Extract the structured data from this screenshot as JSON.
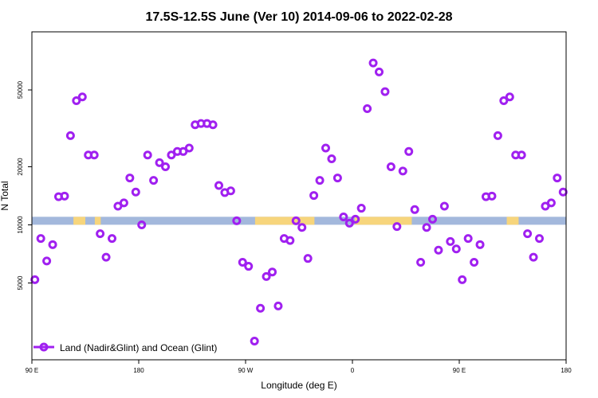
{
  "chart_data": {
    "type": "scatter",
    "title": "17.5S-12.5S June (Ver 10)   2014-09-06 to 2022-02-28",
    "xlabel": "Longitude (deg E)",
    "ylabel": "N Total",
    "x_ticks": [
      {
        "value": 90,
        "label": "90 E"
      },
      {
        "value": 180,
        "label": "180"
      },
      {
        "value": 270,
        "label": "90 W"
      },
      {
        "value": 360,
        "label": "0"
      },
      {
        "value": 450,
        "label": "90 E"
      },
      {
        "value": 540,
        "label": "180"
      }
    ],
    "y_ticks": [
      {
        "value": 5000,
        "label": "5000"
      },
      {
        "value": 10000,
        "label": "10000"
      },
      {
        "value": 20000,
        "label": "20000"
      },
      {
        "value": 50000,
        "label": "50000"
      }
    ],
    "xlim": [
      90,
      540
    ],
    "ylim": [
      2000,
      100000
    ],
    "y_scale": "log",
    "grid": false,
    "legend": {
      "position": "bottom-left",
      "entries": [
        {
          "name": "Land (Nadir&Glint) and Ocean (Glint)",
          "color": "#a020f0"
        }
      ]
    },
    "colors": {
      "series": "#a020f0",
      "ocean_band": "#a3b8dc",
      "land_band": "#f7d57c"
    },
    "band_y": 10500,
    "land_segments": [
      [
        125,
        135
      ],
      [
        143,
        148
      ],
      [
        278,
        328
      ],
      [
        362,
        410
      ],
      [
        490,
        500
      ],
      [
        540,
        540
      ]
    ],
    "series": [
      {
        "name": "Land (Nadir&Glint) and Ocean (Glint)",
        "points": [
          [
            92.5,
            5200
          ],
          [
            97.5,
            8500
          ],
          [
            102.5,
            6500
          ],
          [
            107.5,
            7900
          ],
          [
            112.5,
            14000
          ],
          [
            117.5,
            14100
          ],
          [
            122.5,
            29000
          ],
          [
            127.5,
            44000
          ],
          [
            132.5,
            46000
          ],
          [
            137.5,
            23000
          ],
          [
            142.5,
            23000
          ],
          [
            147.5,
            9000
          ],
          [
            152.5,
            6800
          ],
          [
            157.5,
            8500
          ],
          [
            162.5,
            12500
          ],
          [
            167.5,
            13000
          ],
          [
            172.5,
            17500
          ],
          [
            177.5,
            14800
          ],
          [
            182.5,
            10000
          ],
          [
            187.5,
            23000
          ],
          [
            192.5,
            17000
          ],
          [
            197.5,
            21000
          ],
          [
            202.5,
            20000
          ],
          [
            207.5,
            23000
          ],
          [
            212.5,
            24000
          ],
          [
            217.5,
            24000
          ],
          [
            222.5,
            25000
          ],
          [
            227.5,
            33000
          ],
          [
            232.5,
            33500
          ],
          [
            237.5,
            33500
          ],
          [
            242.5,
            33000
          ],
          [
            247.5,
            16000
          ],
          [
            252.5,
            14700
          ],
          [
            257.5,
            15000
          ],
          [
            262.5,
            10500
          ],
          [
            267.5,
            6400
          ],
          [
            272.5,
            6100
          ],
          [
            277.5,
            2500
          ],
          [
            282.5,
            3700
          ],
          [
            287.5,
            5400
          ],
          [
            292.5,
            5700
          ],
          [
            297.5,
            3800
          ],
          [
            302.5,
            8500
          ],
          [
            307.5,
            8300
          ],
          [
            312.5,
            10500
          ],
          [
            317.5,
            9700
          ],
          [
            322.5,
            6700
          ],
          [
            327.5,
            14200
          ],
          [
            332.5,
            17000
          ],
          [
            337.5,
            25000
          ],
          [
            342.5,
            22000
          ],
          [
            347.5,
            17500
          ],
          [
            352.5,
            11000
          ],
          [
            357.5,
            10200
          ],
          [
            362.5,
            10700
          ],
          [
            367.5,
            12200
          ],
          [
            372.5,
            40000
          ],
          [
            377.5,
            69000
          ],
          [
            382.5,
            62000
          ],
          [
            387.5,
            49000
          ],
          [
            392.5,
            20000
          ],
          [
            397.5,
            9800
          ],
          [
            402.5,
            19000
          ],
          [
            407.5,
            24000
          ],
          [
            412.5,
            12000
          ],
          [
            417.5,
            6400
          ],
          [
            422.5,
            9700
          ],
          [
            427.5,
            10700
          ],
          [
            432.5,
            7400
          ],
          [
            437.5,
            12500
          ],
          [
            442.5,
            8200
          ],
          [
            447.5,
            7500
          ],
          [
            452.5,
            5200
          ],
          [
            457.5,
            8500
          ],
          [
            462.5,
            6400
          ],
          [
            467.5,
            7900
          ],
          [
            472.5,
            14000
          ],
          [
            477.5,
            14100
          ],
          [
            482.5,
            29000
          ],
          [
            487.5,
            44000
          ],
          [
            492.5,
            46000
          ],
          [
            497.5,
            23000
          ],
          [
            502.5,
            23000
          ],
          [
            507.5,
            9000
          ],
          [
            512.5,
            6800
          ],
          [
            517.5,
            8500
          ],
          [
            522.5,
            12500
          ],
          [
            527.5,
            13000
          ],
          [
            532.5,
            17500
          ],
          [
            537.5,
            14800
          ]
        ]
      }
    ]
  }
}
